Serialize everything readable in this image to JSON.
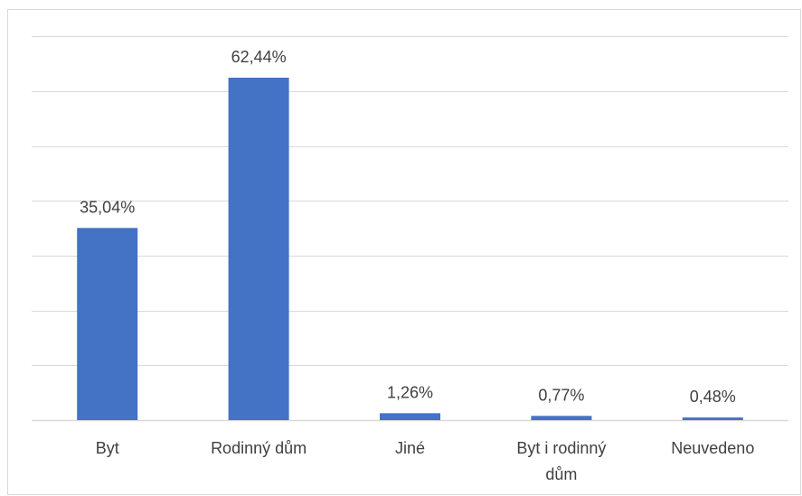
{
  "chart_data": {
    "type": "bar",
    "categories": [
      "Byt",
      "Rodinný dům",
      "Jiné",
      "Byt i rodinný dům",
      "Neuvedeno"
    ],
    "category_label_lines": [
      [
        "Byt"
      ],
      [
        "Rodinný dům"
      ],
      [
        "Jiné"
      ],
      [
        "Byt i rodinný",
        "dům"
      ],
      [
        "Neuvedeno"
      ]
    ],
    "values": [
      35.04,
      62.44,
      1.26,
      0.77,
      0.48
    ],
    "data_labels": [
      "35,04%",
      "62,44%",
      "1,26%",
      "0,77%",
      "0,48%"
    ],
    "title": "",
    "xlabel": "",
    "ylabel": "",
    "ylim": [
      0,
      70
    ],
    "grid": true,
    "legend": "none",
    "bar_color": "#4472c4",
    "grid_color": "#d9d9d9",
    "text_color": "#404040"
  }
}
